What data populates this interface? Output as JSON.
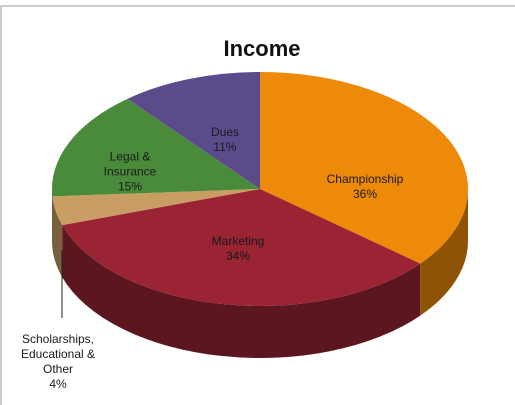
{
  "chart_data": {
    "type": "pie",
    "title": "Income",
    "categories": [
      "Championship",
      "Marketing",
      "Scholarships, Educational & Other",
      "Legal & Insurance",
      "Dues"
    ],
    "values": [
      36,
      34,
      4,
      15,
      11
    ],
    "value_labels": [
      "36%",
      "34%",
      "4%",
      "15%",
      "11%"
    ],
    "colors": [
      "#ee8a0a",
      "#9a2434",
      "#c99e62",
      "#4a8b3b",
      "#5c4b8b"
    ]
  }
}
